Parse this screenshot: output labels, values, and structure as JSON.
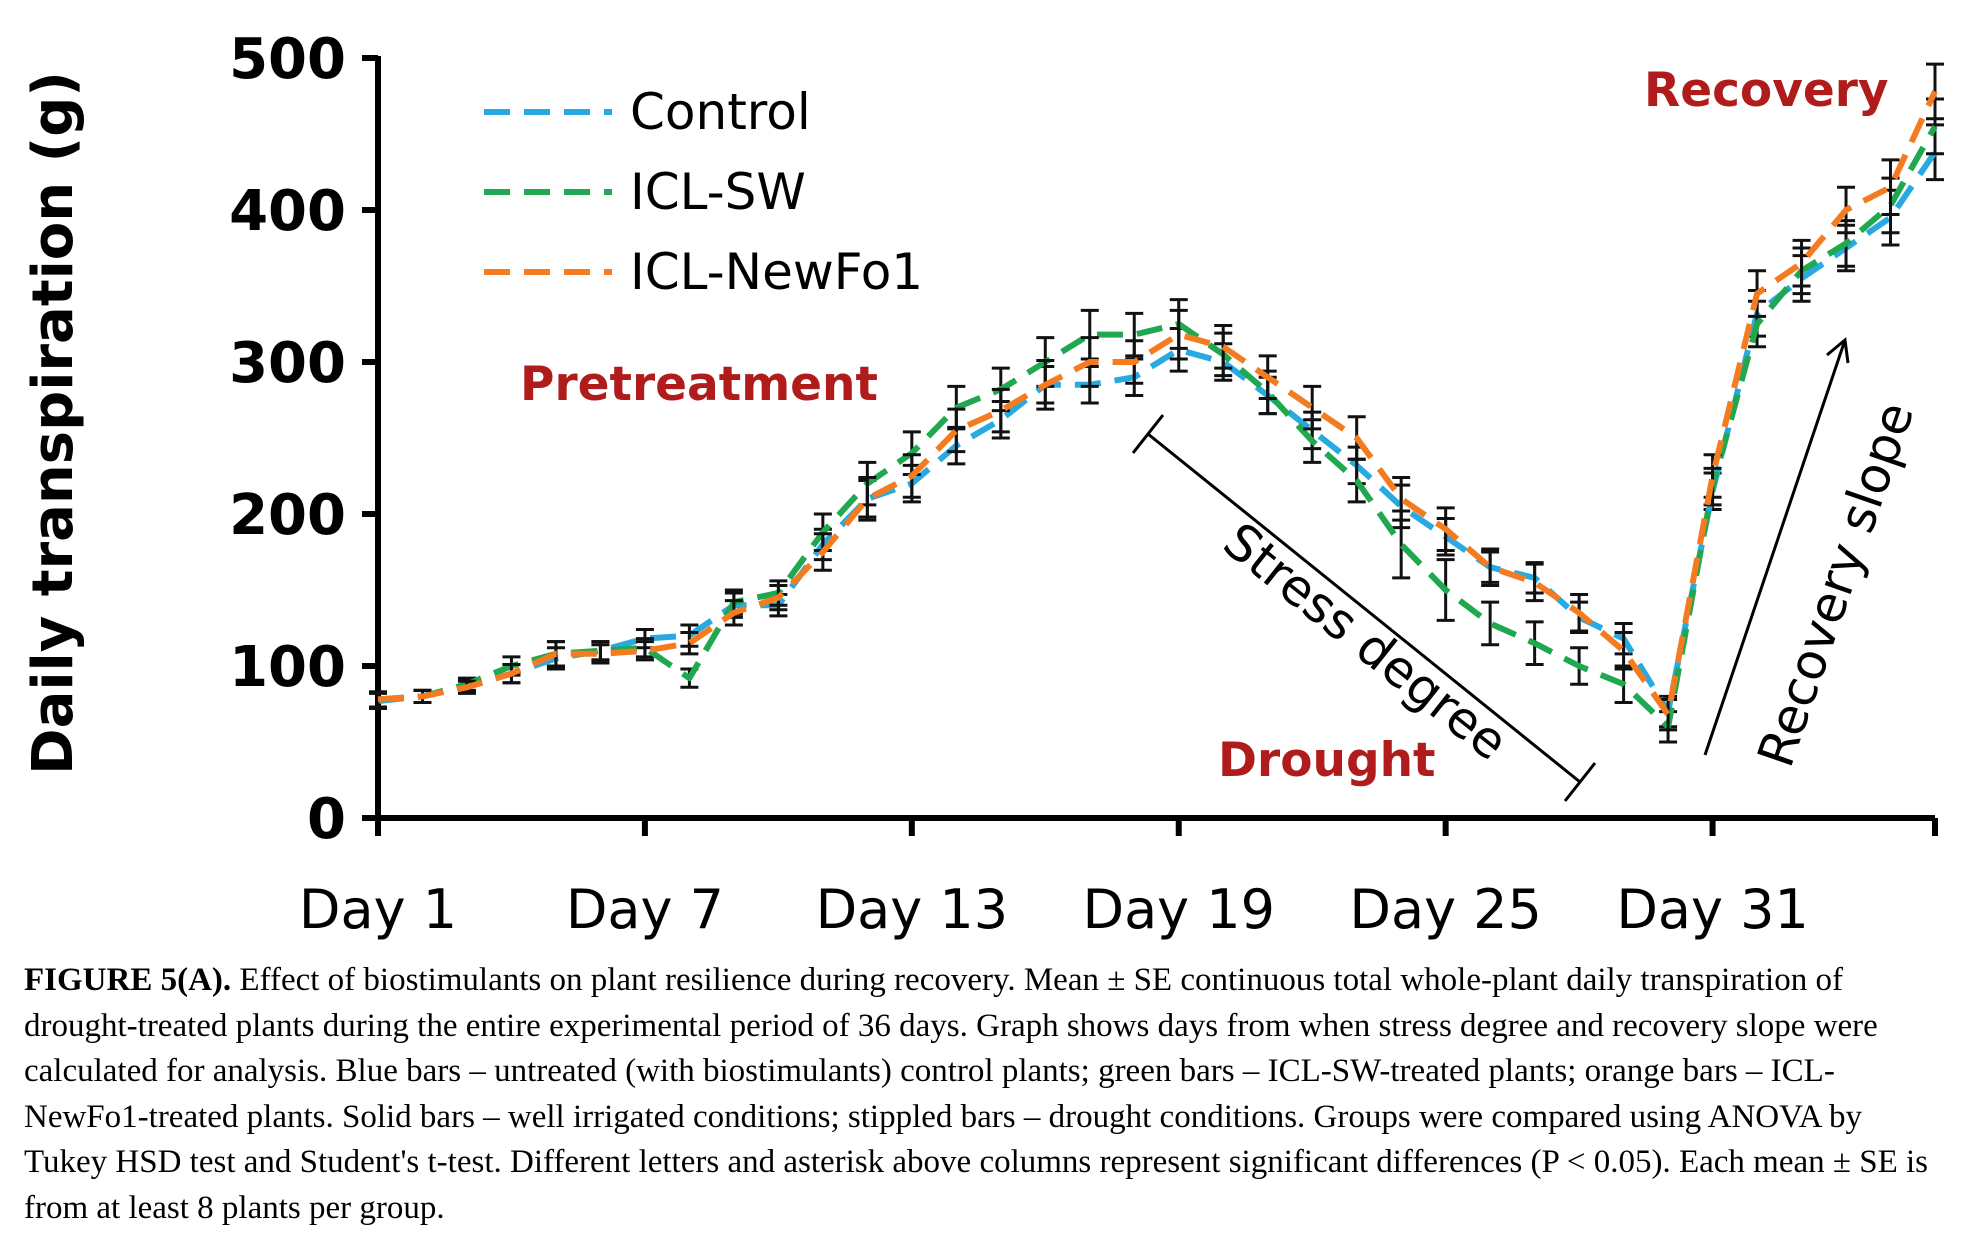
{
  "chart_data": {
    "type": "line",
    "ylabel": "Daily transpiration (g)",
    "ylim": [
      0,
      500
    ],
    "yticks": [
      0,
      100,
      200,
      300,
      400,
      500
    ],
    "xlim": [
      1,
      36
    ],
    "xticks": [
      {
        "day": 1,
        "label": "Day 1"
      },
      {
        "day": 7,
        "label": "Day 7"
      },
      {
        "day": 13,
        "label": "Day 13"
      },
      {
        "day": 19,
        "label": "Day 19"
      },
      {
        "day": 25,
        "label": "Day 25"
      },
      {
        "day": 31,
        "label": "Day 31"
      }
    ],
    "legend_position": "top-left",
    "grid": false,
    "line_style": "dashed",
    "x": [
      1,
      2,
      3,
      4,
      5,
      6,
      7,
      8,
      9,
      10,
      11,
      12,
      13,
      14,
      15,
      16,
      17,
      18,
      19,
      20,
      21,
      22,
      23,
      24,
      25,
      26,
      27,
      28,
      29,
      30,
      31,
      32,
      33,
      34,
      35,
      36
    ],
    "series": [
      {
        "name": "Control",
        "color": "#29a9e1",
        "values": [
          77,
          80,
          87,
          95,
          105,
          110,
          118,
          120,
          140,
          140,
          180,
          210,
          220,
          245,
          262,
          285,
          285,
          290,
          308,
          300,
          278,
          255,
          232,
          205,
          185,
          165,
          158,
          132,
          118,
          70,
          215,
          332,
          355,
          375,
          395,
          438
        ],
        "errors": [
          5,
          4,
          4,
          6,
          7,
          6,
          6,
          7,
          8,
          7,
          10,
          12,
          12,
          12,
          12,
          12,
          12,
          12,
          14,
          12,
          12,
          12,
          12,
          14,
          12,
          10,
          10,
          10,
          10,
          10,
          12,
          15,
          15,
          15,
          18,
          18
        ]
      },
      {
        "name": "ICL-SW",
        "color": "#1fa84f",
        "values": [
          78,
          80,
          88,
          100,
          108,
          110,
          112,
          92,
          142,
          148,
          188,
          220,
          240,
          270,
          282,
          300,
          318,
          318,
          325,
          305,
          280,
          248,
          222,
          180,
          150,
          128,
          115,
          100,
          88,
          60,
          218,
          325,
          360,
          378,
          403,
          455
        ],
        "errors": [
          5,
          4,
          4,
          6,
          8,
          6,
          6,
          6,
          8,
          8,
          12,
          14,
          14,
          14,
          14,
          16,
          16,
          14,
          16,
          14,
          14,
          14,
          14,
          22,
          20,
          14,
          14,
          12,
          12,
          10,
          12,
          15,
          15,
          15,
          18,
          18
        ]
      },
      {
        "name": "ICL-NewFo1",
        "color": "#f47b20",
        "values": [
          78,
          80,
          86,
          95,
          108,
          108,
          110,
          115,
          135,
          145,
          175,
          210,
          225,
          255,
          268,
          285,
          300,
          300,
          318,
          310,
          290,
          270,
          250,
          210,
          190,
          165,
          155,
          135,
          110,
          68,
          225,
          345,
          365,
          400,
          415,
          478
        ],
        "errors": [
          5,
          4,
          4,
          6,
          8,
          6,
          6,
          7,
          8,
          8,
          12,
          14,
          14,
          14,
          14,
          16,
          16,
          14,
          16,
          14,
          14,
          14,
          14,
          14,
          14,
          12,
          12,
          12,
          12,
          10,
          14,
          15,
          15,
          15,
          18,
          18
        ]
      }
    ],
    "annotations": {
      "pretreatment": "Pretreatment",
      "drought": "Drought",
      "recovery": "Recovery",
      "stress_degree": "Stress degree",
      "recovery_slope": "Recovery slope"
    }
  },
  "caption": {
    "label": "FIGURE 5(A).",
    "text": " Effect of biostimulants on plant resilience during recovery. Mean ± SE continuous total whole-plant daily transpiration of drought-treated plants during the entire experimental period of 36 days. Graph shows days from when stress degree and recovery slope were calculated for analysis. Blue bars – untreated (with biostimulants) control plants; green bars – ICL-SW-treated plants; orange bars – ICL-NewFo1-treated plants. Solid bars – well irrigated conditions; stippled bars – drought conditions. Groups were compared using ANOVA by Tukey HSD test and Student's t-test. Different letters and asterisk above columns represent significant differences (P < 0.05). Each mean ± SE is from at least 8 plants per group."
  }
}
